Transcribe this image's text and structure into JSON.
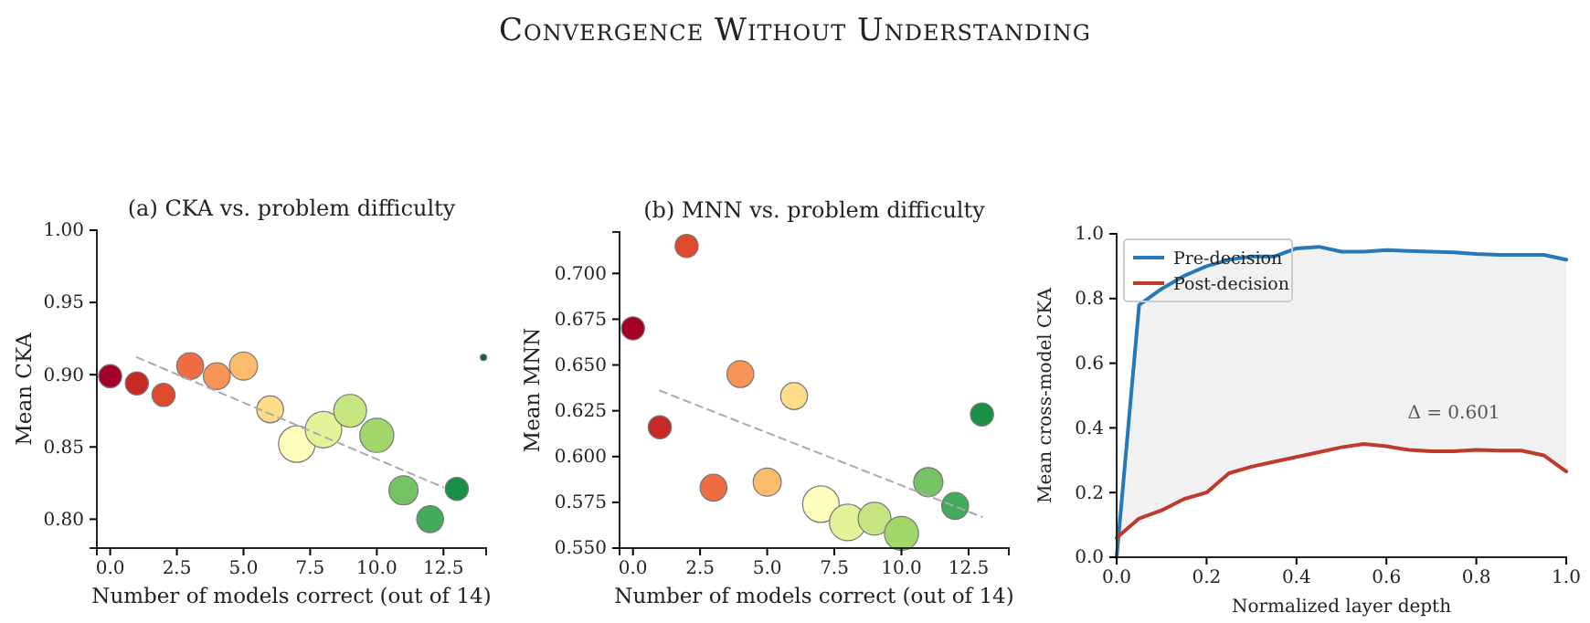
{
  "chart_data": [
    {
      "type": "scatter",
      "title": "(a) CKA vs. problem difficulty",
      "xlabel": "Number of models correct (out of 14)",
      "ylabel": "Mean CKA",
      "annotations": [
        "Convergence Without Understanding"
      ],
      "xlim": [
        -0.5,
        14.1
      ],
      "ylim": [
        0.78,
        1.0
      ],
      "xticks": [
        {
          "value": 0,
          "label": "0.0"
        },
        {
          "value": 2.5,
          "label": "2.5"
        },
        {
          "value": 5,
          "label": "5.0"
        },
        {
          "value": 7.5,
          "label": "7.5"
        },
        {
          "value": 10,
          "label": "10.0"
        },
        {
          "value": 12.5,
          "label": "12.5"
        }
      ],
      "yticks": [
        {
          "value": 0.8,
          "label": "0.80"
        },
        {
          "value": 0.85,
          "label": "0.85"
        },
        {
          "value": 0.9,
          "label": "0.90"
        },
        {
          "value": 0.95,
          "label": "0.95"
        },
        {
          "value": 1.0,
          "label": "1.00"
        }
      ],
      "series": [
        {
          "type": "bubble",
          "x": [
            0,
            1,
            2,
            3,
            4,
            5,
            6,
            7,
            8,
            9,
            10,
            11,
            12,
            13,
            14
          ],
          "values": [
            0.899,
            0.894,
            0.886,
            0.906,
            0.899,
            0.906,
            0.876,
            0.852,
            0.862,
            0.875,
            0.858,
            0.82,
            0.8,
            0.821,
            0.912
          ],
          "sizes": [
            0.4,
            0.4,
            0.4,
            0.54,
            0.54,
            0.59,
            0.54,
            1,
            1,
            0.81,
            0.87,
            0.64,
            0.54,
            0.4,
            0.03
          ],
          "colors": [
            "#a50026",
            "#c62a27",
            "#de4a2e",
            "#f06c42",
            "#f99456",
            "#fdbb6c",
            "#fedc8a",
            "#fefebd",
            "#e3f39a",
            "#c6e77f",
            "#a2d769",
            "#74c364",
            "#42ac5a",
            "#1a9045",
            "#006837"
          ]
        },
        {
          "type": "line",
          "x": [
            1,
            12.5
          ],
          "values": [
            0.912,
            0.822
          ],
          "color": "#aaaaaa",
          "line_style": "dashed"
        }
      ]
    },
    {
      "type": "scatter",
      "title": "(b) MNN vs. problem difficulty",
      "xlabel": "Number of models correct (out of 14)",
      "ylabel": "Mean MNN",
      "xlim": [
        -0.5,
        14
      ],
      "ylim": [
        0.55,
        0.7226
      ],
      "xticks": [
        {
          "value": 0,
          "label": "0.0"
        },
        {
          "value": 2.5,
          "label": "2.5"
        },
        {
          "value": 5,
          "label": "5.0"
        },
        {
          "value": 7.5,
          "label": "7.5"
        },
        {
          "value": 10,
          "label": "10.0"
        },
        {
          "value": 12.5,
          "label": "12.5"
        }
      ],
      "yticks": [
        {
          "value": 0.55,
          "label": "0.550"
        },
        {
          "value": 0.575,
          "label": "0.575"
        },
        {
          "value": 0.6,
          "label": "0.600"
        },
        {
          "value": 0.625,
          "label": "0.625"
        },
        {
          "value": 0.65,
          "label": "0.650"
        },
        {
          "value": 0.675,
          "label": "0.675"
        },
        {
          "value": 0.7,
          "label": "0.700"
        }
      ],
      "series": [
        {
          "type": "bubble",
          "x": [
            0,
            1,
            2,
            3,
            4,
            5,
            6,
            7,
            8,
            9,
            10,
            11,
            12,
            13
          ],
          "values": [
            0.67,
            0.616,
            0.715,
            0.583,
            0.645,
            0.586,
            0.633,
            0.574,
            0.564,
            0.566,
            0.558,
            0.586,
            0.573,
            0.623
          ],
          "sizes": [
            0.4,
            0.4,
            0.4,
            0.54,
            0.54,
            0.59,
            0.54,
            1,
            1,
            0.81,
            0.87,
            0.64,
            0.54,
            0.4
          ],
          "colors": [
            "#a50026",
            "#c62a27",
            "#de4a2e",
            "#f06c42",
            "#f99456",
            "#fdbb6c",
            "#fedc8a",
            "#fefebd",
            "#e3f39a",
            "#c6e77f",
            "#a2d769",
            "#74c364",
            "#42ac5a",
            "#1a9045"
          ]
        },
        {
          "type": "line",
          "x": [
            1,
            13
          ],
          "values": [
            0.636,
            0.567
          ],
          "color": "#aaaaaa",
          "line_style": "dashed"
        }
      ]
    },
    {
      "type": "line",
      "xlabel": "Normalized layer depth",
      "ylabel": "Mean cross-model CKA",
      "legend": "top left",
      "annotations": [
        "Δ = 0.601"
      ],
      "xlim": [
        0,
        1
      ],
      "ylim": [
        0,
        1
      ],
      "xticks": [
        {
          "value": 0,
          "label": "0.0"
        },
        {
          "value": 0.2,
          "label": "0.2"
        },
        {
          "value": 0.4,
          "label": "0.4"
        },
        {
          "value": 0.6,
          "label": "0.6"
        },
        {
          "value": 0.8,
          "label": "0.8"
        },
        {
          "value": 1,
          "label": "1.0"
        }
      ],
      "yticks": [
        {
          "value": 0,
          "label": "0.0"
        },
        {
          "value": 0.2,
          "label": "0.2"
        },
        {
          "value": 0.4,
          "label": "0.4"
        },
        {
          "value": 0.6,
          "label": "0.6"
        },
        {
          "value": 0.8,
          "label": "0.8"
        },
        {
          "value": 1,
          "label": "1.0"
        }
      ],
      "x": [
        0,
        0.05,
        0.1,
        0.15,
        0.2,
        0.25,
        0.3,
        0.35,
        0.4,
        0.45,
        0.5,
        0.55,
        0.6,
        0.65,
        0.7,
        0.75,
        0.8,
        0.85,
        0.9,
        0.95,
        1.0
      ],
      "series": [
        {
          "name": "Pre-decision",
          "color": "#2878b8",
          "values": [
            0.0,
            0.78,
            0.83,
            0.87,
            0.9,
            0.92,
            0.93,
            0.93,
            0.955,
            0.96,
            0.945,
            0.945,
            0.95,
            0.947,
            0.945,
            0.943,
            0.938,
            0.935,
            0.935,
            0.935,
            0.92
          ],
          "lower": [
            0.06,
            0.12,
            0.145,
            0.18,
            0.2,
            0.26,
            0.28,
            0.295,
            0.31,
            0.325,
            0.34,
            0.35,
            0.343,
            0.332,
            0.328,
            0.328,
            0.332,
            0.33,
            0.33,
            0.315,
            0.265
          ],
          "upper": [
            0.0,
            0.78,
            0.83,
            0.87,
            0.9,
            0.92,
            0.93,
            0.93,
            0.955,
            0.96,
            0.945,
            0.945,
            0.95,
            0.947,
            0.945,
            0.943,
            0.938,
            0.935,
            0.935,
            0.935,
            0.92
          ]
        },
        {
          "name": "Post-decision",
          "color": "#c0392b",
          "values": [
            0.06,
            0.12,
            0.145,
            0.18,
            0.2,
            0.26,
            0.28,
            0.295,
            0.31,
            0.325,
            0.34,
            0.35,
            0.343,
            0.332,
            0.328,
            0.328,
            0.332,
            0.33,
            0.33,
            0.315,
            0.265
          ]
        }
      ]
    }
  ]
}
